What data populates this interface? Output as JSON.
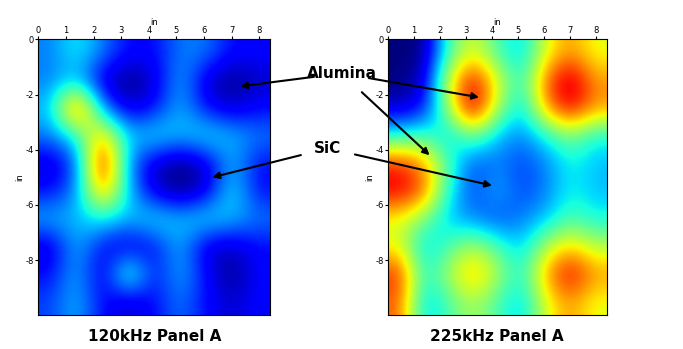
{
  "chart_data": [
    {
      "type": "heatmap",
      "title": "120kHz Panel A",
      "x_label": "in",
      "y_label": "in",
      "color": "jet",
      "xlim": [
        0,
        8.4
      ],
      "xticks": [
        0,
        1,
        2,
        3,
        4,
        5,
        6,
        7,
        8
      ],
      "ylim": [
        -10,
        0
      ],
      "yticks": [
        0,
        -2,
        -4,
        -6,
        -8
      ],
      "cells": [
        [
          0.3,
          0.4,
          0.3,
          0.2,
          0.2,
          0.3,
          0.3,
          0.2,
          0.2
        ],
        [
          0.3,
          0.35,
          0.15,
          0.1,
          0.15,
          0.35,
          0.15,
          0.1,
          0.15
        ],
        [
          0.35,
          0.85,
          0.3,
          0.15,
          0.2,
          0.35,
          0.2,
          0.15,
          0.2
        ],
        [
          0.3,
          0.4,
          0.7,
          0.35,
          0.4,
          0.35,
          0.4,
          0.35,
          0.3
        ],
        [
          0.15,
          0.25,
          0.9,
          0.3,
          0.15,
          0.1,
          0.15,
          0.35,
          0.2
        ],
        [
          0.2,
          0.3,
          0.75,
          0.35,
          0.15,
          0.1,
          0.15,
          0.4,
          0.2
        ],
        [
          0.35,
          0.35,
          0.4,
          0.35,
          0.4,
          0.35,
          0.4,
          0.35,
          0.3
        ],
        [
          0.15,
          0.35,
          0.2,
          0.15,
          0.2,
          0.35,
          0.15,
          0.15,
          0.2
        ],
        [
          0.2,
          0.35,
          0.15,
          0.5,
          0.2,
          0.35,
          0.2,
          0.1,
          0.2
        ],
        [
          0.25,
          0.35,
          0.2,
          0.15,
          0.2,
          0.3,
          0.2,
          0.15,
          0.2
        ]
      ]
    },
    {
      "type": "heatmap",
      "title": "225kHz Panel A",
      "x_label": "in",
      "y_label": "in",
      "color": "jet",
      "xlim": [
        0,
        8.4
      ],
      "xticks": [
        0,
        1,
        2,
        3,
        4,
        5,
        6,
        7,
        8
      ],
      "ylim": [
        -10,
        0
      ],
      "yticks": [
        0,
        -2,
        -4,
        -6,
        -8
      ],
      "cells": [
        [
          0.1,
          0.1,
          0.45,
          0.6,
          0.45,
          0.35,
          0.6,
          0.7,
          0.6
        ],
        [
          0.1,
          0.15,
          0.6,
          0.85,
          0.6,
          0.4,
          0.75,
          0.9,
          0.7
        ],
        [
          0.15,
          0.2,
          0.55,
          0.9,
          0.55,
          0.35,
          0.7,
          0.85,
          0.7
        ],
        [
          0.4,
          0.45,
          0.35,
          0.5,
          0.35,
          0.3,
          0.4,
          0.5,
          0.4
        ],
        [
          0.8,
          0.7,
          0.45,
          0.25,
          0.3,
          0.25,
          0.3,
          0.4,
          0.35
        ],
        [
          0.85,
          0.75,
          0.4,
          0.25,
          0.35,
          0.25,
          0.3,
          0.4,
          0.35
        ],
        [
          0.6,
          0.5,
          0.35,
          0.3,
          0.25,
          0.3,
          0.35,
          0.45,
          0.4
        ],
        [
          0.6,
          0.35,
          0.45,
          0.55,
          0.45,
          0.35,
          0.55,
          0.65,
          0.55
        ],
        [
          0.8,
          0.4,
          0.55,
          0.7,
          0.55,
          0.4,
          0.7,
          0.85,
          0.7
        ],
        [
          0.75,
          0.35,
          0.45,
          0.55,
          0.45,
          0.35,
          0.6,
          0.7,
          0.6
        ]
      ]
    }
  ],
  "annotations": [
    {
      "text": "Alumina",
      "targets": [
        {
          "panel": 0,
          "x": 7.3,
          "y": -1.7
        },
        {
          "panel": 1,
          "x": 3.5,
          "y": -2.1
        },
        {
          "panel": 1,
          "x": 1.6,
          "y": -4.2
        }
      ]
    },
    {
      "text": "SiC",
      "targets": [
        {
          "panel": 0,
          "x": 6.3,
          "y": -5.0
        },
        {
          "panel": 1,
          "x": 4.0,
          "y": -5.3
        }
      ]
    }
  ]
}
